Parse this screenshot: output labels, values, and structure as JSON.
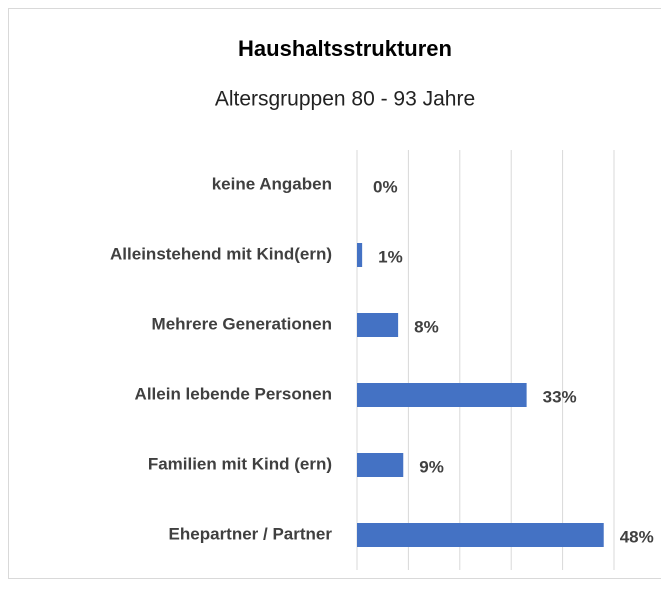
{
  "chart_data": {
    "type": "bar",
    "orientation": "horizontal",
    "title": "Haushaltsstrukturen",
    "subtitle": "Altersgruppen 80 - 93 Jahre",
    "categories": [
      "keine Angaben",
      "Alleinstehend mit Kind(ern)",
      "Mehrere Generationen",
      "Allein lebende Personen",
      "Familien mit Kind (ern)",
      "Ehepartner / Partner"
    ],
    "values": [
      0,
      1,
      8,
      33,
      9,
      48
    ],
    "value_labels": [
      "0%",
      "1%",
      "8%",
      "33%",
      "9%",
      "48%"
    ],
    "color": "#4472c4",
    "xlim": [
      0,
      50
    ],
    "xticks": [
      0,
      10,
      20,
      30,
      40,
      50
    ],
    "grid": true
  }
}
